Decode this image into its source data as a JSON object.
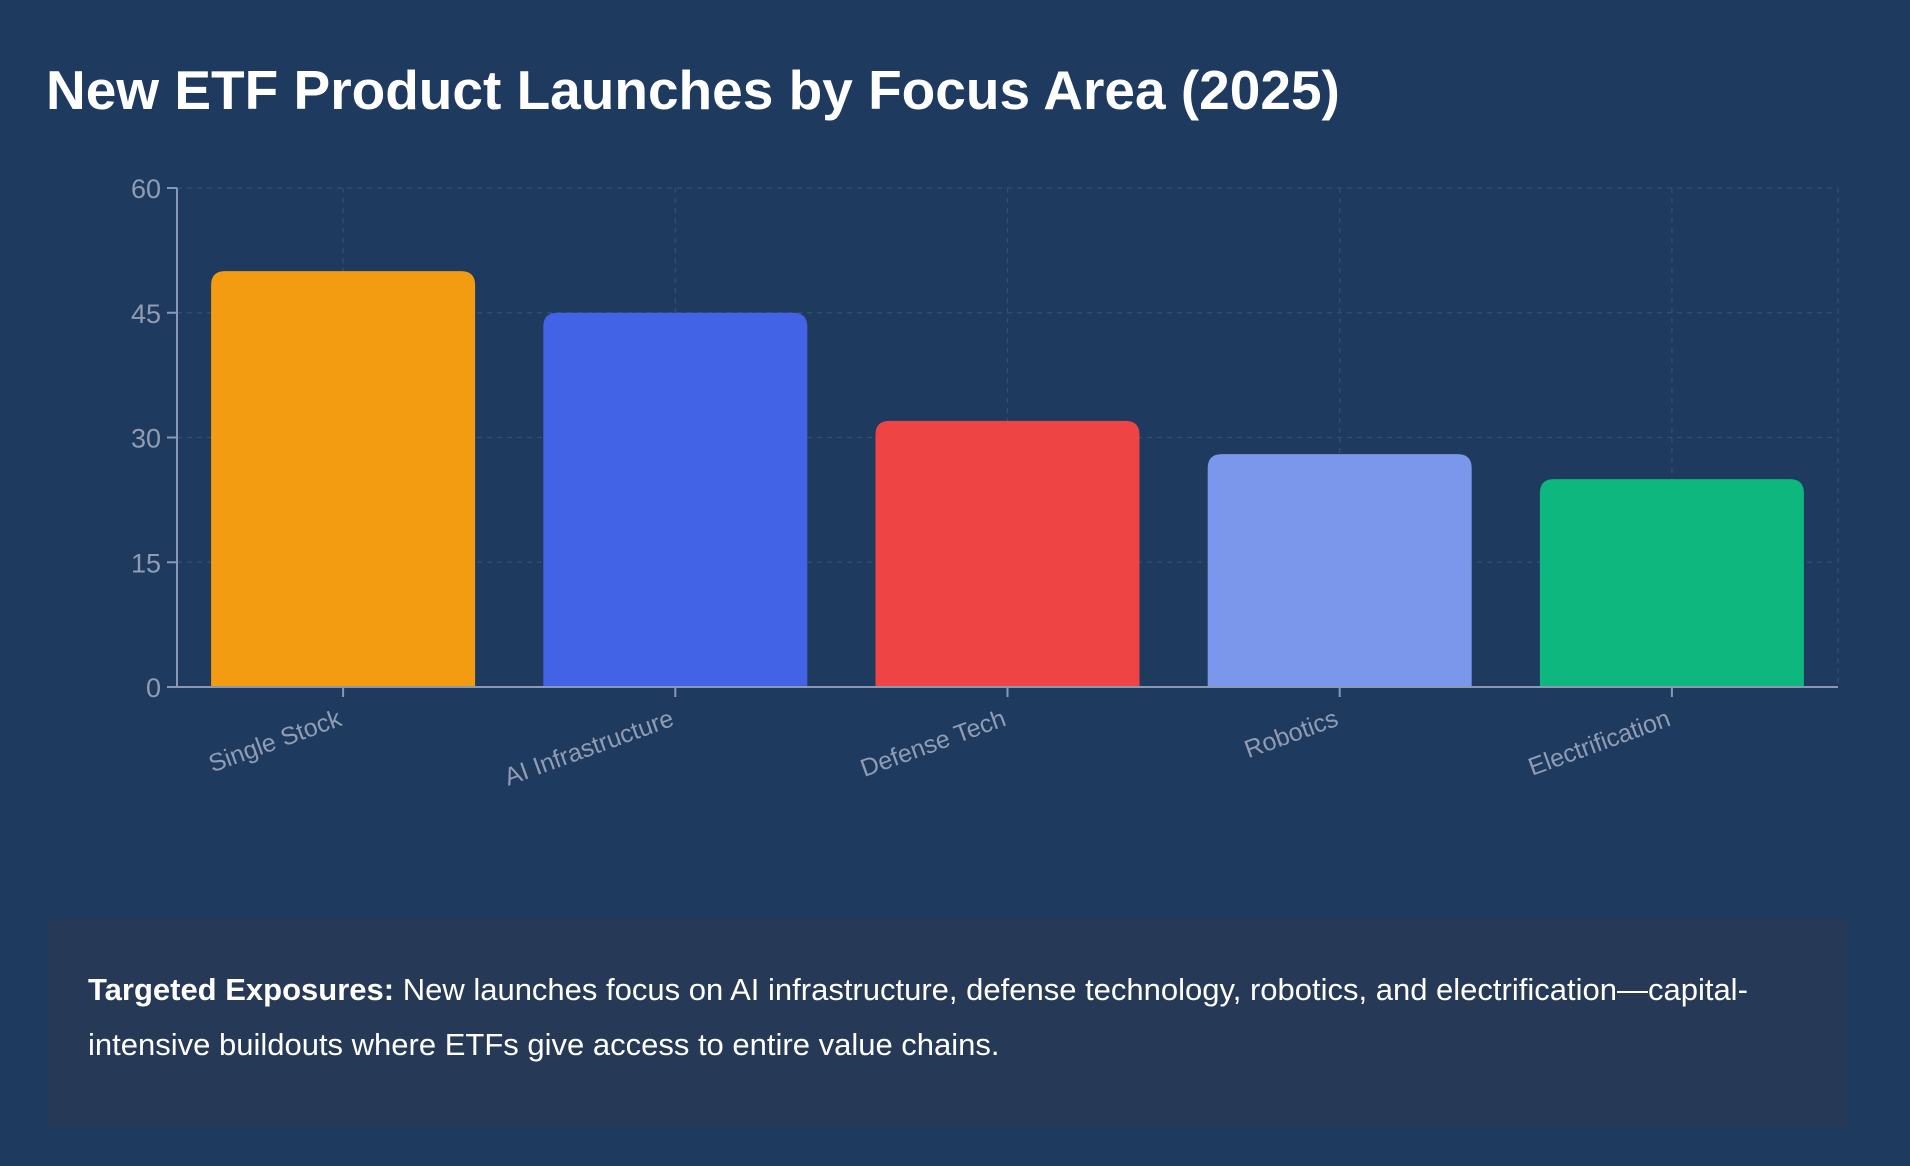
{
  "title": "New ETF Product Launches by Focus Area (2025)",
  "colors": {
    "background": "#1f3a5f",
    "note_background": "#263957",
    "axis": "#8a99b3",
    "grid": "#34506f",
    "tick_label": "#8f9cb3"
  },
  "chart_data": {
    "type": "bar",
    "title": "New ETF Product Launches by Focus Area (2025)",
    "xlabel": "",
    "ylabel": "",
    "categories": [
      "Single Stock",
      "AI Infrastructure",
      "Defense Tech",
      "Robotics",
      "Electrification"
    ],
    "values": [
      50,
      45,
      32,
      28,
      25
    ],
    "colors": [
      "#f39c12",
      "#4263e6",
      "#ef4444",
      "#7b97eb",
      "#0db77e"
    ],
    "ylim": [
      0,
      60
    ],
    "yticks": [
      0,
      15,
      30,
      45,
      60
    ],
    "grid": true,
    "legend": "none"
  },
  "note": {
    "label": "Targeted Exposures:",
    "text": " New launches focus on AI infrastructure, defense technology, robotics, and electrification—capital-intensive buildouts where ETFs give access to entire value chains."
  }
}
